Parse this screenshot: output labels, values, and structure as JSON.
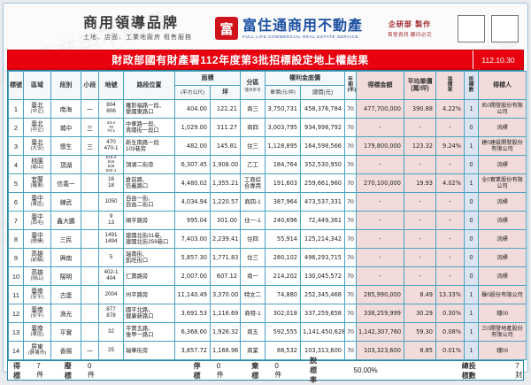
{
  "header": {
    "brand_left": {
      "title": "商用領導品牌",
      "subtitle": "土地、店面、工業地廠房 租售服務"
    },
    "brand_center": {
      "logo_glyph": "富",
      "name": "富住通商用不動產",
      "tagline": "FULL LIFE COMMERCIAL REAL ESTATE SERVICE"
    },
    "credits": {
      "line1": "企研部 製作",
      "line2": "首發資訊 翻印必究"
    }
  },
  "banner": {
    "title": "財政部國有財產署112年度第3批招標設定地上權結果",
    "date": "112.10.30"
  },
  "colors": {
    "banner_red": "#e8000e",
    "grid_teal": "#4aa3c0",
    "pink_fill": "#f2dcdb",
    "blue_fill": "#dbe5f1",
    "brand_blue": "#1d50a2",
    "logo_red": "#d0121b"
  },
  "table": {
    "columns": {
      "no": "標號",
      "region": "區域",
      "section": "段別",
      "subsection": "小段",
      "lot": "地號",
      "location": "路段位置",
      "area_group": "面積",
      "area_m2": "(平方公尺)",
      "area_ping": "坪",
      "zoning_main": "分區",
      "zoning_note": "僅供參考",
      "price_group": "權利金底價",
      "unit_price": "單價(元/坪)",
      "total_price": "總價(元)",
      "years": "年期(年)",
      "win_amount": "得標金額",
      "avg_price_line1": "平均單價",
      "avg_price_line2": "(萬/坪)",
      "premium": "溢價率",
      "bids": "投標數",
      "winner": "得標人"
    },
    "rows": [
      {
        "no": "1",
        "region": "臺北",
        "district": "(中正)",
        "section": "南海",
        "subsection": "一",
        "lot": [
          "804",
          "806"
        ],
        "location": [
          "羅斯福路一段、",
          "愛國東路口"
        ],
        "area_m2": "404.00",
        "area_ping": "122.21",
        "zoning": "商三",
        "unit_price": "3,750,731",
        "total_price": "458,376,784",
        "years": "70",
        "win_amount": "477,700,000",
        "avg_price": "390.88",
        "premium": "4.22%",
        "bids": "1",
        "winner": "名0開發股份有限公司"
      },
      {
        "no": "2",
        "region": "臺北",
        "district": "(中正)",
        "section": "城中",
        "subsection": "三",
        "lot": [
          "33-2",
          "70",
          "70-1"
        ],
        "location": [
          "中華路一段、",
          "貴陽街一段口"
        ],
        "area_m2": "1,029.00",
        "area_ping": "311.27",
        "zoning": "商四",
        "unit_price": "3,003,795",
        "total_price": "934,998,792",
        "years": "70",
        "win_amount": "-",
        "avg_price": "-",
        "premium": "-",
        "bids": "0",
        "winner": "流標"
      },
      {
        "no": "3",
        "region": "臺北",
        "district": "(大安)",
        "section": "懷生",
        "subsection": "三",
        "lot": [
          "470",
          "470-1"
        ],
        "location": [
          "新生南路一段",
          "103巷旁"
        ],
        "area_m2": "482.00",
        "area_ping": "145.81",
        "zoning": "住三",
        "unit_price": "1,128,895",
        "total_price": "164,598,566",
        "years": "70",
        "win_amount": "179,800,000",
        "avg_price": "123.32",
        "premium": "9.24%",
        "bids": "1",
        "winner": "建0建設開發股份有限公司"
      },
      {
        "no": "4",
        "region": "桃園",
        "district": "(龜山)",
        "section": "頂湖",
        "subsection": "",
        "lot": [
          "615-2",
          "616",
          "629",
          "632-1"
        ],
        "location": [
          "頂湖二街旁"
        ],
        "area_m2": "6,307.45",
        "area_ping": "1,908.00",
        "zoning": "乙工",
        "unit_price": "184,764",
        "total_price": "352,530,950",
        "years": "70",
        "win_amount": "-",
        "avg_price": "-",
        "premium": "-",
        "bids": "0",
        "winner": "流標"
      },
      {
        "no": "5",
        "region": "宜蘭",
        "district": "(羅東)",
        "section": "信義一",
        "subsection": "",
        "lot": [
          "16",
          "18"
        ],
        "location": [
          "倉前路、",
          "信義路口"
        ],
        "area_m2": "4,480.02",
        "area_ping": "1,355.21",
        "zoning": "工商綜合專用",
        "unit_price": "191,603",
        "total_price": "259,661,960",
        "years": "70",
        "win_amount": "270,100,000",
        "avg_price": "19.93",
        "premium": "4.02%",
        "bids": "1",
        "winner": "全0實業股份有限公司"
      },
      {
        "no": "6",
        "region": "臺中",
        "district": "(東區)",
        "section": "練武",
        "subsection": "",
        "lot": [
          "1050"
        ],
        "location": [
          "自由一街、",
          "自由二街口"
        ],
        "area_m2": "4,034.94",
        "area_ping": "1,220.57",
        "zoning": "商四-1",
        "unit_price": "387,964",
        "total_price": "473,537,331",
        "years": "70",
        "win_amount": "-",
        "avg_price": "-",
        "premium": "-",
        "bids": "0",
        "winner": "流標"
      },
      {
        "no": "7",
        "region": "臺中",
        "district": "(西屯)",
        "section": "鑫大鵬",
        "subsection": "",
        "lot": [
          "9",
          "13"
        ],
        "location": [
          "順平路旁"
        ],
        "area_m2": "995.04",
        "area_ping": "301.00",
        "zoning": "住一-1",
        "unit_price": "240,696",
        "total_price": "72,449,361",
        "years": "70",
        "win_amount": "-",
        "avg_price": "-",
        "premium": "-",
        "bids": "0",
        "winner": "流標"
      },
      {
        "no": "8",
        "region": "臺中",
        "district": "(梧棲)",
        "section": "三民",
        "subsection": "",
        "lot": [
          "1491",
          "1494"
        ],
        "location": [
          "建國北街31巷、",
          "建國北街259巷口"
        ],
        "area_m2": "7,403.00",
        "area_ping": "2,239.41",
        "zoning": "住四",
        "unit_price": "55,914",
        "total_price": "125,214,342",
        "years": "70",
        "win_amount": "-",
        "avg_price": "-",
        "premium": "-",
        "bids": "0",
        "winner": "流標"
      },
      {
        "no": "9",
        "region": "高雄",
        "district": "(前鎮)",
        "section": "興南",
        "subsection": "",
        "lot": [
          "5"
        ],
        "location": [
          "瑞南街、",
          "凱旺街口"
        ],
        "area_m2": "5,857.30",
        "area_ping": "1,771.83",
        "zoning": "住三",
        "unit_price": "280,102",
        "total_price": "496,293,715",
        "years": "70",
        "win_amount": "-",
        "avg_price": "-",
        "premium": "-",
        "bids": "0",
        "winner": "流標"
      },
      {
        "no": "10",
        "region": "高雄",
        "district": "(岡山)",
        "section": "陽明",
        "subsection": "",
        "lot": [
          "402-1",
          "404"
        ],
        "location": [
          "仁壽路旁"
        ],
        "area_m2": "2,007.00",
        "area_ping": "607.12",
        "zoning": "商一",
        "unit_price": "214,202",
        "total_price": "130,045,572",
        "years": "70",
        "win_amount": "-",
        "avg_price": "-",
        "premium": "-",
        "bids": "0",
        "winner": "流標"
      },
      {
        "no": "11",
        "region": "臺南",
        "district": "(安平)",
        "section": "古堡",
        "subsection": "",
        "lot": [
          "2004"
        ],
        "location": [
          "州平路旁"
        ],
        "area_m2": "11,140.49",
        "area_ping": "3,370.00",
        "zoning": "特文二",
        "unit_price": "74,880",
        "total_price": "252,345,468",
        "years": "70",
        "win_amount": "285,990,000",
        "avg_price": "8.49",
        "premium": "13.33%",
        "bids": "1",
        "winner": "聲0股份有限公司"
      },
      {
        "no": "12",
        "region": "臺南",
        "district": "(安平)",
        "section": "漁光",
        "subsection": "",
        "lot": [
          "877",
          "878"
        ],
        "location": [
          "國平北路、",
          "健康新路口"
        ],
        "area_m2": "3,691.53",
        "area_ping": "1,116.69",
        "zoning": "商特-1",
        "unit_price": "302,018",
        "total_price": "337,259,658",
        "years": "70",
        "win_amount": "338,259,999",
        "avg_price": "30.29",
        "premium": "0.30%",
        "bids": "1",
        "winner": "鍾00"
      },
      {
        "no": "13",
        "region": "臺南",
        "district": "(東區)",
        "section": "平實",
        "subsection": "",
        "lot": [
          "32"
        ],
        "location": [
          "平實五路、",
          "後甲一路口"
        ],
        "area_m2": "6,368.00",
        "area_ping": "1,926.32",
        "zoning": "商五",
        "unit_price": "592,555",
        "total_price": "1,141,450,628",
        "years": "70",
        "win_amount": "1,142,307,760",
        "avg_price": "59.30",
        "premium": "0.08%",
        "bids": "1",
        "winner": "三0開發地產股份有限公司"
      },
      {
        "no": "14",
        "region": "屏東",
        "district": "(屏東市)",
        "section": "香揚",
        "subsection": "一",
        "lot": [
          "25"
        ],
        "location": [
          "瑞華街旁"
        ],
        "area_m2": "3,857.72",
        "area_ping": "1,166.96",
        "zoning": "商業",
        "unit_price": "88,532",
        "total_price": "103,313,600",
        "years": "70",
        "win_amount": "103,323,600",
        "avg_price": "8.85",
        "premium": "0.01%",
        "bids": "1",
        "winner": "鍾00"
      }
    ]
  },
  "footer": {
    "items": [
      {
        "label": "得標",
        "value": "7件"
      },
      {
        "label": "廢標",
        "value": "0件"
      },
      {
        "label": "停標",
        "value": "0件"
      },
      {
        "label": "棄標",
        "value": "0件"
      },
      {
        "label": "脫標率",
        "value": "50.00%"
      },
      {
        "label": "總投標數",
        "value": "7封"
      }
    ]
  },
  "watermark_text": "富住通商用不動產"
}
